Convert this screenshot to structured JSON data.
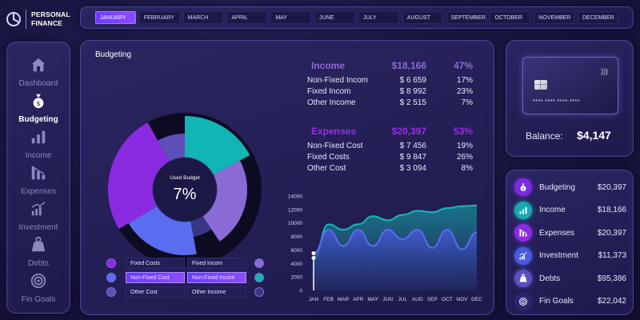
{
  "logo": {
    "line1": "PERSONAL",
    "line2": "FINANCE"
  },
  "months": [
    {
      "label": "JANUARY",
      "active": true
    },
    {
      "label": "FEBRUARY"
    },
    {
      "label": "MARCH"
    },
    {
      "label": "APRIL"
    },
    {
      "label": "MAY"
    },
    {
      "label": "JUNE"
    },
    {
      "label": "JULY"
    },
    {
      "label": "AUGUST"
    },
    {
      "label": "SEPTEMBER"
    },
    {
      "label": "OCTOBER"
    },
    {
      "label": "NOVEMBER"
    },
    {
      "label": "DECEMBER"
    }
  ],
  "sidebar": {
    "items": [
      {
        "label": "Dashboard",
        "icon": "home-icon"
      },
      {
        "label": "Budgeting",
        "icon": "money-bag-icon",
        "active": true
      },
      {
        "label": "Income",
        "icon": "bar-chart-icon"
      },
      {
        "label": "Expenses",
        "icon": "declining-chart-icon"
      },
      {
        "label": "Investment",
        "icon": "growth-chart-icon"
      },
      {
        "label": "Debts",
        "icon": "weight-icon"
      },
      {
        "label": "Fin Goals",
        "icon": "target-icon"
      }
    ]
  },
  "main": {
    "title": "Budgeting",
    "donut": {
      "center_label": "Used Budget",
      "center_value": "7%"
    },
    "income": {
      "title": "Income",
      "total": "$18,166",
      "percent": "47%",
      "rows": [
        {
          "label": "Non-Fixed Incom",
          "value": "$ 6 659",
          "pct": "17%"
        },
        {
          "label": "Fixed Incom",
          "value": "$ 8 992",
          "pct": "23%"
        },
        {
          "label": "Other Income",
          "value": "$ 2 515",
          "pct": "7%"
        }
      ]
    },
    "expenses": {
      "title": "Expenses",
      "total": "$20,397",
      "percent": "53%",
      "rows": [
        {
          "label": "Non-Fixed Cost",
          "value": "$ 7 456",
          "pct": "19%"
        },
        {
          "label": "Fixed Costs",
          "value": "$ 9 847",
          "pct": "26%"
        },
        {
          "label": "Other Cost",
          "value": "$ 3 094",
          "pct": "8%"
        }
      ]
    },
    "legend": [
      {
        "left": "Fixed Costs",
        "right": "Fixed Incom",
        "left_color": "#8a2be2",
        "right_color": "#8a6bd6"
      },
      {
        "left": "Non-Fixed Cost",
        "right": "Non-Fixed Incom",
        "left_color": "#5a6cf0",
        "right_color": "#12b5b5",
        "highlight": true
      },
      {
        "left": "Other Cost",
        "right": "Other Income",
        "left_color": "#5c4fb8",
        "right_color": "#3b3585"
      }
    ]
  },
  "card": {
    "number": "**** **** **** ****",
    "balance_label": "Balance:",
    "balance_value": "$4,147"
  },
  "summary": [
    {
      "label": "Budgeting",
      "value": "$20,397",
      "icon": "money-bag-icon",
      "color": "#7b2be0"
    },
    {
      "label": "Income",
      "value": "$18,166",
      "icon": "bar-chart-icon",
      "color": "#1aa8b0"
    },
    {
      "label": "Expenses",
      "value": "$20,397",
      "icon": "declining-chart-icon",
      "color": "#8a2be2"
    },
    {
      "label": "Investment",
      "value": "$11,373",
      "icon": "growth-chart-icon",
      "color": "#4a5ae0"
    },
    {
      "label": "Debts",
      "value": "$95,386",
      "icon": "weight-icon",
      "color": "#5a4fc0"
    },
    {
      "label": "Fin Goals",
      "value": "$22,042",
      "icon": "target-icon",
      "color": "#2a2770"
    }
  ],
  "chart_data": [
    {
      "type": "pie",
      "categories": [
        "Non-Fixed Incom",
        "Fixed Incom",
        "Other Income",
        "Non-Fixed Cost",
        "Fixed Costs",
        "Other Cost"
      ],
      "values": [
        6659,
        8992,
        2515,
        7456,
        9847,
        3094
      ],
      "colors": [
        "#12b5b5",
        "#8a6bd6",
        "#3b3585",
        "#5a6cf0",
        "#8a2be2",
        "#5c4fb8"
      ]
    },
    {
      "type": "area",
      "categories": [
        "JAN",
        "FEB",
        "MAR",
        "APR",
        "MAY",
        "JUN",
        "JUL",
        "AUG",
        "SEP",
        "OCT",
        "NOV",
        "DEC"
      ],
      "ylim": [
        0,
        14000
      ],
      "yticks": [
        0,
        2000,
        4000,
        6000,
        8000,
        10000,
        12000,
        14000
      ],
      "grid": false,
      "series": [
        {
          "values": [
            4800,
            9800,
            9000,
            9800,
            11000,
            10400,
            11200,
            11800,
            11600,
            12200,
            12500,
            12600
          ],
          "color": "#14b8b8"
        },
        {
          "values": [
            5500,
            9000,
            6600,
            9000,
            6600,
            9000,
            7600,
            9000,
            6300,
            9000,
            6100,
            8600
          ],
          "color": "#5a6cf0"
        }
      ]
    }
  ]
}
